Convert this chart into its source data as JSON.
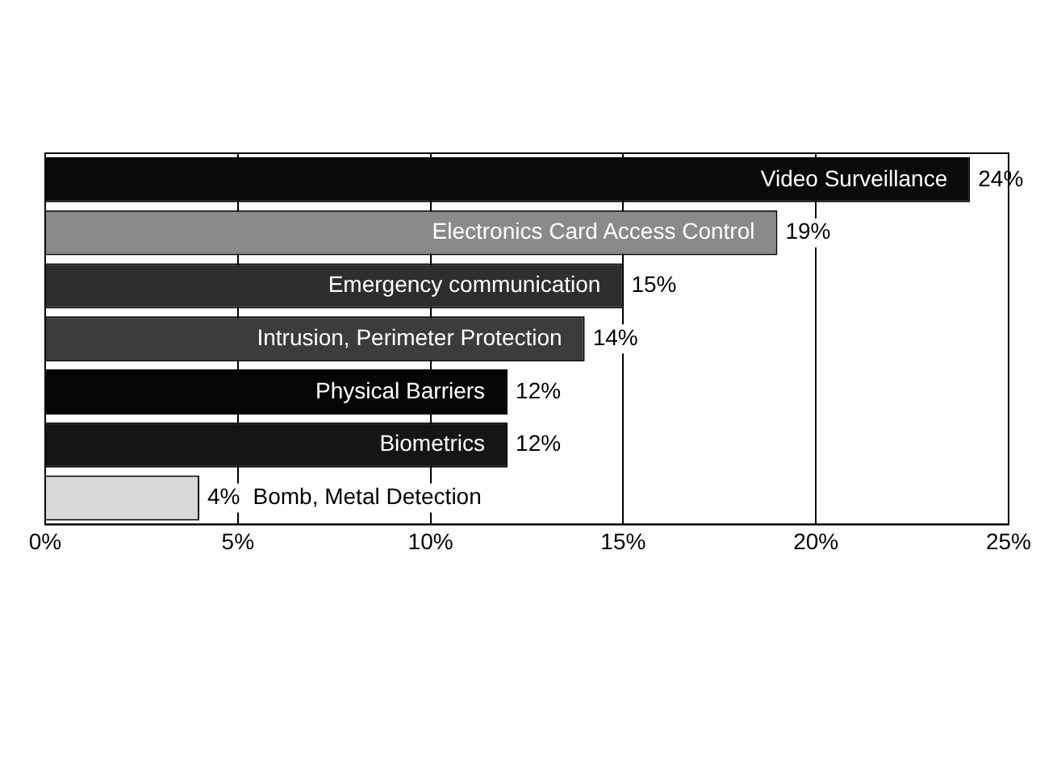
{
  "chart_data": {
    "type": "bar",
    "orientation": "horizontal",
    "categories": [
      "Video Surveillance",
      "Electronics Card Access Control",
      "Emergency communication",
      "Intrusion, Perimeter Protection",
      "Physical Barriers",
      "Biometrics",
      "Bomb, Metal Detection"
    ],
    "values": [
      24,
      19,
      15,
      14,
      12,
      12,
      4
    ],
    "colors": [
      "#0a0a0a",
      "#8a8a8a",
      "#2e2e2e",
      "#3c3c3c",
      "#050505",
      "#151515",
      "#d8d8d8"
    ],
    "value_labels": [
      "24%",
      "19%",
      "15%",
      "14%",
      "12%",
      "12%",
      "4%"
    ],
    "xlim": [
      0,
      25
    ],
    "xticks": [
      {
        "value": 0,
        "label": "0%"
      },
      {
        "value": 5,
        "label": "5%"
      },
      {
        "value": 10,
        "label": "10%"
      },
      {
        "value": 15,
        "label": "15%"
      },
      {
        "value": 20,
        "label": "20%"
      },
      {
        "value": 25,
        "label": "25%"
      }
    ],
    "grid": "x",
    "legend": false
  }
}
